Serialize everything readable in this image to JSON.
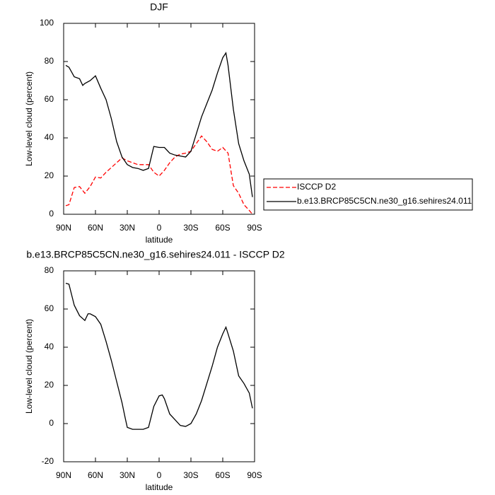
{
  "chart_data": [
    {
      "type": "line",
      "title": "DJF",
      "xlabel": "latitude",
      "ylabel": "Low-level cloud (percent)",
      "xlim": [
        90,
        -90
      ],
      "xticks": [
        {
          "value": 90,
          "label": "90N"
        },
        {
          "value": 60,
          "label": "60N"
        },
        {
          "value": 30,
          "label": "30N"
        },
        0,
        {
          "value": -30,
          "label": "30S"
        },
        {
          "value": -60,
          "label": "60S"
        },
        {
          "value": -90,
          "label": "90S"
        }
      ],
      "ylim": [
        0,
        100
      ],
      "yticks": [
        0,
        20,
        40,
        60,
        80,
        100
      ],
      "legend": "right",
      "series": [
        {
          "name": "ISCCP D2",
          "color": "#ff0000",
          "linestyle": "dashed",
          "x": [
            88,
            85,
            80,
            75,
            70,
            65,
            60,
            55,
            50,
            45,
            40,
            35,
            30,
            25,
            20,
            15,
            10,
            5,
            0,
            -5,
            -10,
            -15,
            -20,
            -25,
            -30,
            -35,
            -40,
            -45,
            -50,
            -55,
            -60,
            -65,
            -70,
            -75,
            -80,
            -85,
            -88
          ],
          "values": [
            4.5,
            5,
            14,
            14.5,
            11,
            14.5,
            19.5,
            19,
            22,
            24.5,
            27,
            29.5,
            28,
            27,
            26,
            26,
            26,
            22,
            20,
            23,
            27,
            30,
            31.5,
            32,
            33,
            37,
            41,
            38,
            34,
            33,
            35,
            32,
            15,
            11,
            5,
            2,
            0
          ]
        },
        {
          "name": "b.e13.BRCP85C5CN.ne30_g16.sehires24.011",
          "color": "#000000",
          "linestyle": "solid",
          "x": [
            88,
            85,
            80,
            75,
            72,
            70,
            65,
            60,
            55,
            50,
            45,
            40,
            35,
            30,
            25,
            20,
            15,
            10,
            5,
            0,
            -5,
            -10,
            -15,
            -20,
            -25,
            -30,
            -35,
            -40,
            -45,
            -50,
            -55,
            -60,
            -63,
            -65,
            -70,
            -75,
            -80,
            -85,
            -88
          ],
          "values": [
            78,
            77,
            72,
            71,
            67.5,
            68.5,
            70,
            72.5,
            66,
            60,
            50,
            38,
            30,
            26,
            24.5,
            24,
            23,
            24,
            35.5,
            35,
            35,
            32,
            31,
            30.5,
            30,
            33,
            42,
            51,
            58,
            65,
            74,
            82,
            84.5,
            78,
            55,
            37,
            28,
            21,
            9
          ]
        }
      ]
    },
    {
      "type": "line",
      "title": "b.e13.BRCP85C5CN.ne30_g16.sehires24.011 - ISCCP D2",
      "xlabel": "latitude",
      "ylabel": "Low-level cloud (percent)",
      "xlim": [
        90,
        -90
      ],
      "xticks": [
        {
          "value": 90,
          "label": "90N"
        },
        {
          "value": 60,
          "label": "60N"
        },
        {
          "value": 30,
          "label": "30N"
        },
        0,
        {
          "value": -30,
          "label": "30S"
        },
        {
          "value": -60,
          "label": "60S"
        },
        {
          "value": -90,
          "label": "90S"
        }
      ],
      "ylim": [
        -20,
        80
      ],
      "yticks": [
        -20,
        0,
        20,
        40,
        60,
        80
      ],
      "series": [
        {
          "color": "#000000",
          "linestyle": "solid",
          "x": [
            88,
            85,
            80,
            75,
            70,
            67,
            65,
            60,
            55,
            50,
            45,
            40,
            35,
            32,
            30,
            25,
            20,
            15,
            10,
            5,
            0,
            -3,
            -5,
            -10,
            -15,
            -20,
            -25,
            -30,
            -35,
            -40,
            -45,
            -50,
            -55,
            -60,
            -63,
            -65,
            -70,
            -75,
            -80,
            -85,
            -88
          ],
          "values": [
            73.5,
            73,
            62,
            56.5,
            54,
            57.5,
            57.5,
            56,
            52,
            43,
            33,
            22,
            11,
            3,
            -2,
            -3,
            -3,
            -3,
            -2,
            9,
            14.5,
            15,
            13,
            5,
            2,
            -1,
            -1.5,
            0,
            5,
            12,
            21,
            30,
            40,
            47,
            50.5,
            47,
            38,
            25,
            21,
            16,
            8
          ]
        }
      ]
    }
  ]
}
